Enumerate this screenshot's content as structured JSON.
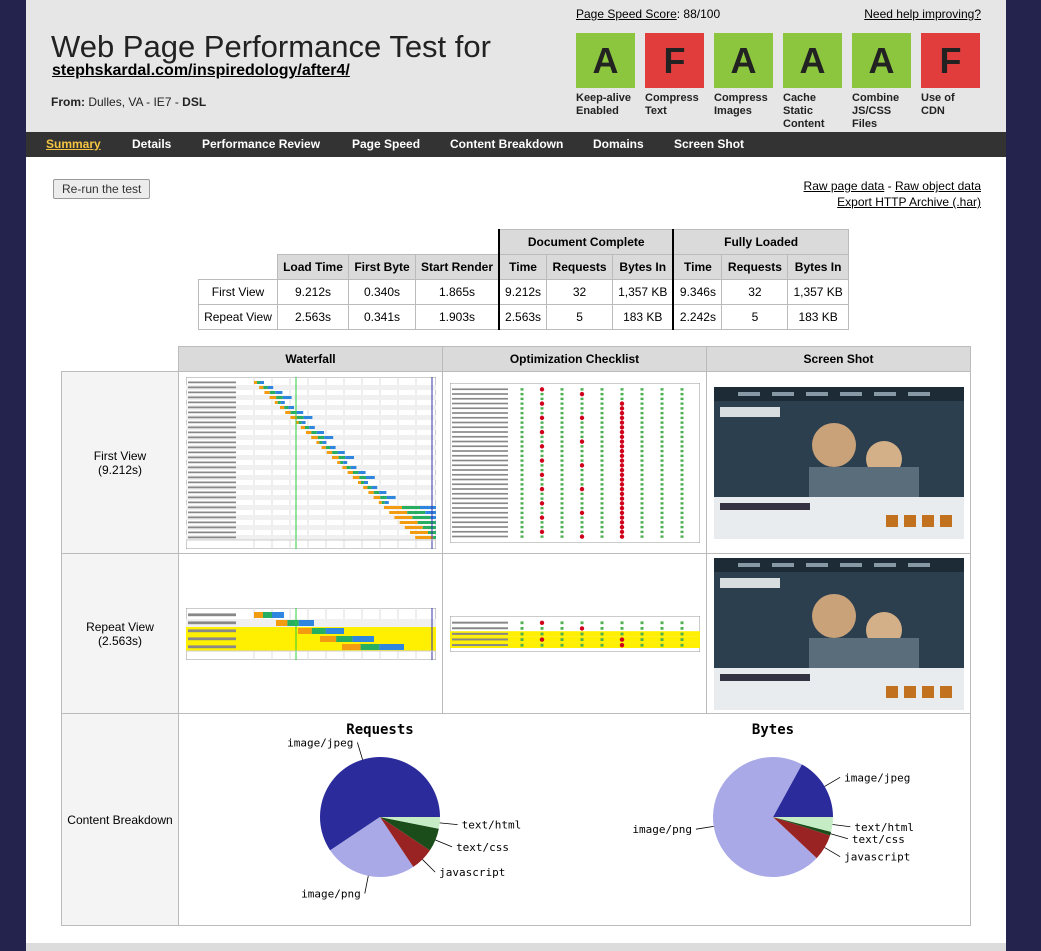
{
  "header": {
    "title": "Web Page Performance Test for",
    "url": "stephskardal.com/inspiredology/after4/",
    "from_label": "From:",
    "from_location": "Dulles, VA - IE7 - ",
    "from_connection": "DSL",
    "score_label": "Page Speed Score",
    "score_value": ": 88/100",
    "help_link": "Need help improving?"
  },
  "grades": [
    {
      "letter": "A",
      "label": "Keep-alive Enabled",
      "color": "#8cc63f"
    },
    {
      "letter": "F",
      "label": "Compress Text",
      "color": "#e23d3d"
    },
    {
      "letter": "A",
      "label": "Compress Images",
      "color": "#8cc63f"
    },
    {
      "letter": "A",
      "label": "Cache Static Content",
      "color": "#8cc63f"
    },
    {
      "letter": "A",
      "label": "Combine JS/CSS Files",
      "color": "#8cc63f"
    },
    {
      "letter": "F",
      "label": "Use of CDN",
      "color": "#e23d3d"
    }
  ],
  "nav": {
    "summary": "Summary",
    "details": "Details",
    "performance_review": "Performance Review",
    "page_speed": "Page Speed",
    "content_breakdown": "Content Breakdown",
    "domains": "Domains",
    "screen_shot": "Screen Shot"
  },
  "rerun_button": "Re-run the test",
  "links": {
    "raw_page": "Raw page data",
    "sep": " - ",
    "raw_object": "Raw object data",
    "har": "Export HTTP Archive (.har)"
  },
  "metrics": {
    "group_doc": "Document Complete",
    "group_full": "Fully Loaded",
    "headers": [
      "Load Time",
      "First Byte",
      "Start Render",
      "Time",
      "Requests",
      "Bytes In",
      "Time",
      "Requests",
      "Bytes In"
    ],
    "rows": [
      {
        "label": "First View",
        "values": [
          "9.212s",
          "0.340s",
          "1.865s",
          "9.212s",
          "32",
          "1,357 KB",
          "9.346s",
          "32",
          "1,357 KB"
        ]
      },
      {
        "label": "Repeat View",
        "values": [
          "2.563s",
          "0.341s",
          "1.903s",
          "2.563s",
          "5",
          "183 KB",
          "2.242s",
          "5",
          "183 KB"
        ]
      }
    ]
  },
  "grid": {
    "col_waterfall": "Waterfall",
    "col_checklist": "Optimization Checklist",
    "col_screenshot": "Screen Shot",
    "first_view_label": "First View",
    "first_view_time": "(9.212s)",
    "repeat_view_label": "Repeat View",
    "repeat_view_time": "(2.563s)",
    "breakdown_label": "Content Breakdown"
  },
  "chart_data": [
    {
      "type": "pie",
      "title": "Requests",
      "slices": [
        {
          "label": "image/jpeg",
          "value": 19,
          "color": "#2b2b9c"
        },
        {
          "label": "image/png",
          "value": 8,
          "color": "#a9a9e8"
        },
        {
          "label": "javascript",
          "value": 2,
          "color": "#992222"
        },
        {
          "label": "text/css",
          "value": 2,
          "color": "#1a4d1a"
        },
        {
          "label": "text/html",
          "value": 1,
          "color": "#c5ecc5"
        }
      ]
    },
    {
      "type": "pie",
      "title": "Bytes",
      "slices": [
        {
          "label": "image/jpeg",
          "value": 17,
          "color": "#2b2b9c"
        },
        {
          "label": "image/png",
          "value": 71,
          "color": "#a9a9e8"
        },
        {
          "label": "javascript",
          "value": 7,
          "color": "#992222"
        },
        {
          "label": "text/css",
          "value": 1,
          "color": "#1a4d1a"
        },
        {
          "label": "text/html",
          "value": 4,
          "color": "#c5ecc5"
        }
      ]
    }
  ]
}
